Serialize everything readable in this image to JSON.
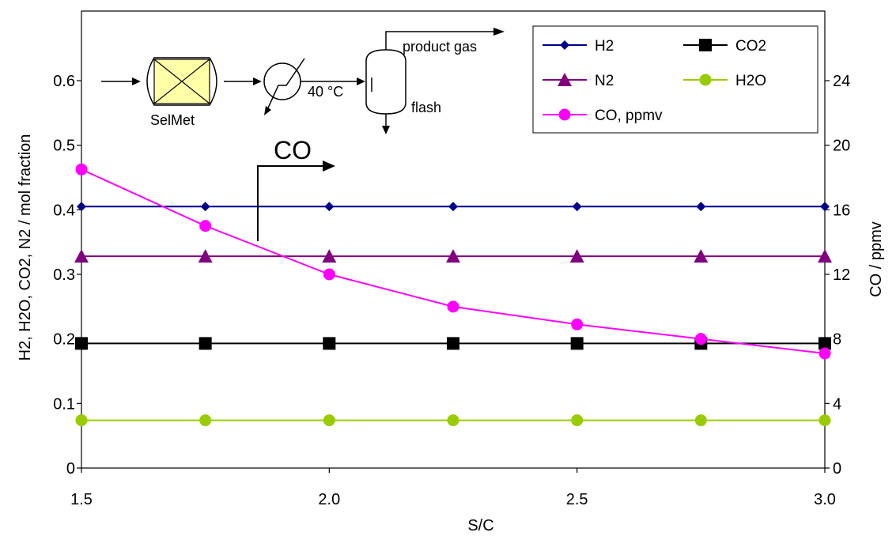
{
  "chart_data": {
    "type": "line",
    "x": [
      1.5,
      1.75,
      2.0,
      2.25,
      2.5,
      2.75,
      3.0
    ],
    "xlabel": "S/C",
    "ylabel": "H2, H2O, CO2, N2 / mol fraction",
    "y2label": "CO / ppmv",
    "xlim": [
      1.5,
      3.0
    ],
    "ylim": [
      0,
      0.6
    ],
    "y2lim": [
      0,
      24
    ],
    "xticks": [
      "1.5",
      "2.0",
      "2.5",
      "3.0"
    ],
    "yticks": [
      "0",
      "0.1",
      "0.2",
      "0.3",
      "0.4",
      "0.5",
      "0.6"
    ],
    "y2ticks": [
      "0",
      "4",
      "8",
      "12",
      "16",
      "20",
      "24"
    ],
    "grid": false,
    "legend_position": "top-right",
    "series": [
      {
        "name": "H2",
        "axis": "left",
        "color": "#00008B",
        "marker": "diamond",
        "values": [
          0.405,
          0.405,
          0.405,
          0.405,
          0.405,
          0.405,
          0.405
        ]
      },
      {
        "name": "CO2",
        "axis": "left",
        "color": "#000000",
        "marker": "square",
        "values": [
          0.193,
          0.193,
          0.193,
          0.193,
          0.193,
          0.193,
          0.193
        ]
      },
      {
        "name": "N2",
        "axis": "left",
        "color": "#800080",
        "marker": "triangle",
        "values": [
          0.328,
          0.328,
          0.328,
          0.328,
          0.328,
          0.328,
          0.328
        ]
      },
      {
        "name": "H2O",
        "axis": "left",
        "color": "#99CC00",
        "marker": "circle",
        "values": [
          0.074,
          0.074,
          0.074,
          0.074,
          0.074,
          0.074,
          0.074
        ]
      },
      {
        "name": "CO, ppmv",
        "axis": "right",
        "color": "#FF00FF",
        "marker": "circle",
        "values": [
          18.5,
          15.0,
          12.0,
          10.0,
          8.9,
          8.0,
          7.1
        ]
      }
    ],
    "annotations": {
      "co_arrow_label": "CO",
      "schematic": {
        "reactor_label": "SelMet",
        "cooler_label": "40 °C",
        "flash_label": "flash",
        "product_label": "product gas"
      }
    }
  }
}
